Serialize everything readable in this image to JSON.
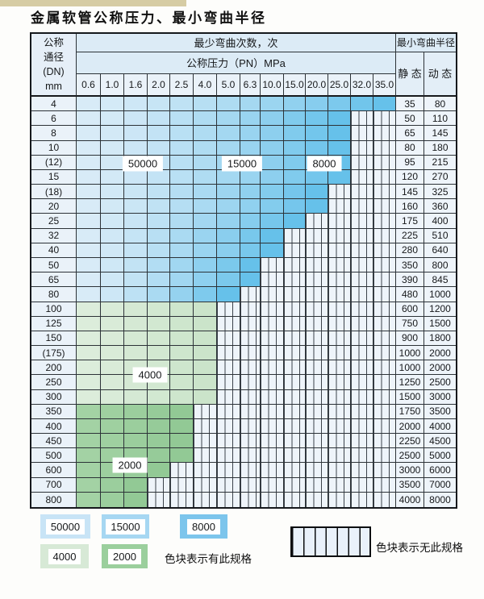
{
  "title": "金属软管公称压力、最小弯曲半径",
  "chart_data": {
    "type": "table",
    "title": "金属软管公称压力、最小弯曲半径",
    "header": {
      "dn_lines": [
        "公称",
        "通径",
        "(DN)",
        "mm"
      ],
      "bend_cycles": "最少弯曲次数，次",
      "pressure": "公称压力（PN）MPa",
      "radius": "最小弯曲半径",
      "static": "静 态",
      "dynamic": "动 态"
    },
    "pressure_columns": [
      "0.6",
      "1.0",
      "1.6",
      "2.0",
      "2.5",
      "4.0",
      "5.0",
      "6.3",
      "10.0",
      "15.0",
      "20.0",
      "25.0",
      "32.0",
      "35.0"
    ],
    "rows": [
      {
        "dn": "4",
        "max_pn": "35.0",
        "colored_through_index": 13,
        "family": "blue",
        "static": "35",
        "dynamic": "80"
      },
      {
        "dn": "6",
        "max_pn": "25.0",
        "colored_through_index": 11,
        "family": "blue",
        "static": "50",
        "dynamic": "110"
      },
      {
        "dn": "8",
        "max_pn": "25.0",
        "colored_through_index": 11,
        "family": "blue",
        "static": "65",
        "dynamic": "145"
      },
      {
        "dn": "10",
        "max_pn": "25.0",
        "colored_through_index": 11,
        "family": "blue",
        "static": "80",
        "dynamic": "180"
      },
      {
        "dn": "(12)",
        "max_pn": "25.0",
        "colored_through_index": 11,
        "family": "blue",
        "static": "95",
        "dynamic": "215"
      },
      {
        "dn": "15",
        "max_pn": "25.0",
        "colored_through_index": 11,
        "family": "blue",
        "static": "120",
        "dynamic": "270"
      },
      {
        "dn": "(18)",
        "max_pn": "20.0",
        "colored_through_index": 10,
        "family": "blue",
        "static": "145",
        "dynamic": "325"
      },
      {
        "dn": "20",
        "max_pn": "20.0",
        "colored_through_index": 10,
        "family": "blue",
        "static": "160",
        "dynamic": "360"
      },
      {
        "dn": "25",
        "max_pn": "15.0",
        "colored_through_index": 9,
        "family": "blue",
        "static": "175",
        "dynamic": "400"
      },
      {
        "dn": "32",
        "max_pn": "10.0",
        "colored_through_index": 8,
        "family": "blue",
        "static": "225",
        "dynamic": "510"
      },
      {
        "dn": "40",
        "max_pn": "10.0",
        "colored_through_index": 8,
        "family": "blue",
        "static": "280",
        "dynamic": "640"
      },
      {
        "dn": "50",
        "max_pn": "6.3",
        "colored_through_index": 7,
        "family": "blue",
        "static": "350",
        "dynamic": "800"
      },
      {
        "dn": "65",
        "max_pn": "6.3",
        "colored_through_index": 7,
        "family": "blue",
        "static": "390",
        "dynamic": "845"
      },
      {
        "dn": "80",
        "max_pn": "5.0",
        "colored_through_index": 6,
        "family": "blue",
        "static": "480",
        "dynamic": "1000"
      },
      {
        "dn": "100",
        "max_pn": "4.0",
        "colored_through_index": 5,
        "family": "green_light",
        "static": "600",
        "dynamic": "1200"
      },
      {
        "dn": "125",
        "max_pn": "4.0",
        "colored_through_index": 5,
        "family": "green_light",
        "static": "750",
        "dynamic": "1500"
      },
      {
        "dn": "150",
        "max_pn": "4.0",
        "colored_through_index": 5,
        "family": "green_light",
        "static": "900",
        "dynamic": "1800"
      },
      {
        "dn": "(175)",
        "max_pn": "4.0",
        "colored_through_index": 5,
        "family": "green_light",
        "static": "1000",
        "dynamic": "2000"
      },
      {
        "dn": "200",
        "max_pn": "4.0",
        "colored_through_index": 5,
        "family": "green_light",
        "static": "1000",
        "dynamic": "2000"
      },
      {
        "dn": "250",
        "max_pn": "4.0",
        "colored_through_index": 5,
        "family": "green_light",
        "static": "1250",
        "dynamic": "2500"
      },
      {
        "dn": "300",
        "max_pn": "4.0",
        "colored_through_index": 5,
        "family": "green_light",
        "static": "1500",
        "dynamic": "3000"
      },
      {
        "dn": "350",
        "max_pn": "2.5",
        "colored_through_index": 4,
        "family": "green_dark",
        "static": "1750",
        "dynamic": "3500"
      },
      {
        "dn": "400",
        "max_pn": "2.5",
        "colored_through_index": 4,
        "family": "green_dark",
        "static": "2000",
        "dynamic": "4000"
      },
      {
        "dn": "450",
        "max_pn": "2.5",
        "colored_through_index": 4,
        "family": "green_dark",
        "static": "2250",
        "dynamic": "4500"
      },
      {
        "dn": "500",
        "max_pn": "2.5",
        "colored_through_index": 4,
        "family": "green_dark",
        "static": "2500",
        "dynamic": "5000"
      },
      {
        "dn": "600",
        "max_pn": "2.0",
        "colored_through_index": 3,
        "family": "green_dark",
        "static": "3000",
        "dynamic": "6000"
      },
      {
        "dn": "700",
        "max_pn": "1.6",
        "colored_through_index": 2,
        "family": "green_dark",
        "static": "3500",
        "dynamic": "7000"
      },
      {
        "dn": "800",
        "max_pn": "1.6",
        "colored_through_index": 2,
        "family": "green_dark",
        "static": "4000",
        "dynamic": "8000"
      }
    ],
    "cycle_labels": [
      {
        "text": "50000"
      },
      {
        "text": "15000"
      },
      {
        "text": "8000"
      },
      {
        "text": "4000"
      },
      {
        "text": "2000"
      }
    ]
  },
  "legend": {
    "swatches": [
      {
        "text": "50000",
        "color": "#c8e4f6"
      },
      {
        "text": "15000",
        "color": "#a6d7f2"
      },
      {
        "text": "8000",
        "color": "#7cc5ec"
      },
      {
        "text": "4000",
        "color": "#d7e9d6"
      },
      {
        "text": "2000",
        "color": "#9bcf9d"
      }
    ],
    "available_label": "色块表示有此规格",
    "unavailable_label": "色块表示无此规格"
  },
  "colors": {
    "blue_start": "#d8ebf7",
    "blue_end": "#66c1ea",
    "green_light_start": "#dceddb",
    "green_light_end": "#cbe4ca",
    "green_dark_start": "#a3d2a4",
    "green_dark_end": "#92c995",
    "stripe_bg": "#eef4fa",
    "grid_line": "#2c3237",
    "beige_strip": "#d6cca4"
  }
}
